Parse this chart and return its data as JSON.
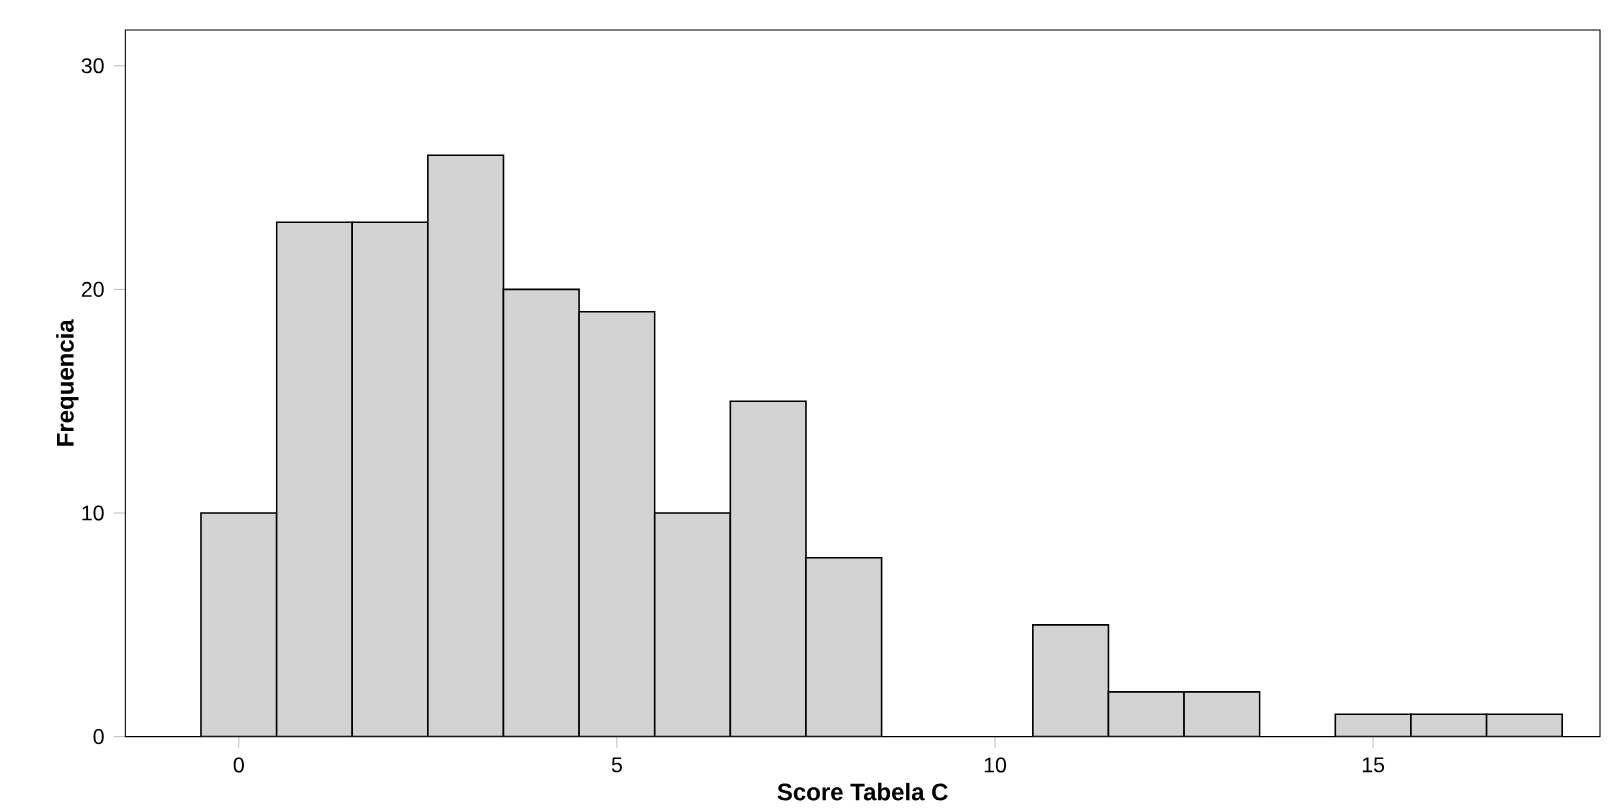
{
  "chart_data": {
    "type": "histogram",
    "xlabel": "Score Tabela C",
    "ylabel": "Frequencia",
    "bins": [
      -0.5,
      0.5,
      1.5,
      2.5,
      3.5,
      4.5,
      5.5,
      6.5,
      7.5,
      8.5,
      9.5,
      10.5,
      11.5,
      12.5,
      13.5,
      14.5,
      15.5,
      16.5,
      17.5
    ],
    "values": [
      10,
      23,
      23,
      26,
      20,
      19,
      10,
      15,
      8,
      0,
      0,
      5,
      2,
      2,
      0,
      1,
      1,
      1
    ],
    "color": "#d3d3d3",
    "xlim": [
      -1.5,
      18
    ],
    "ylim": [
      0,
      31.6
    ],
    "xticks": [
      0,
      5,
      10,
      15
    ],
    "yticks": [
      0,
      10,
      20,
      30
    ],
    "grid": false,
    "legend": false
  }
}
